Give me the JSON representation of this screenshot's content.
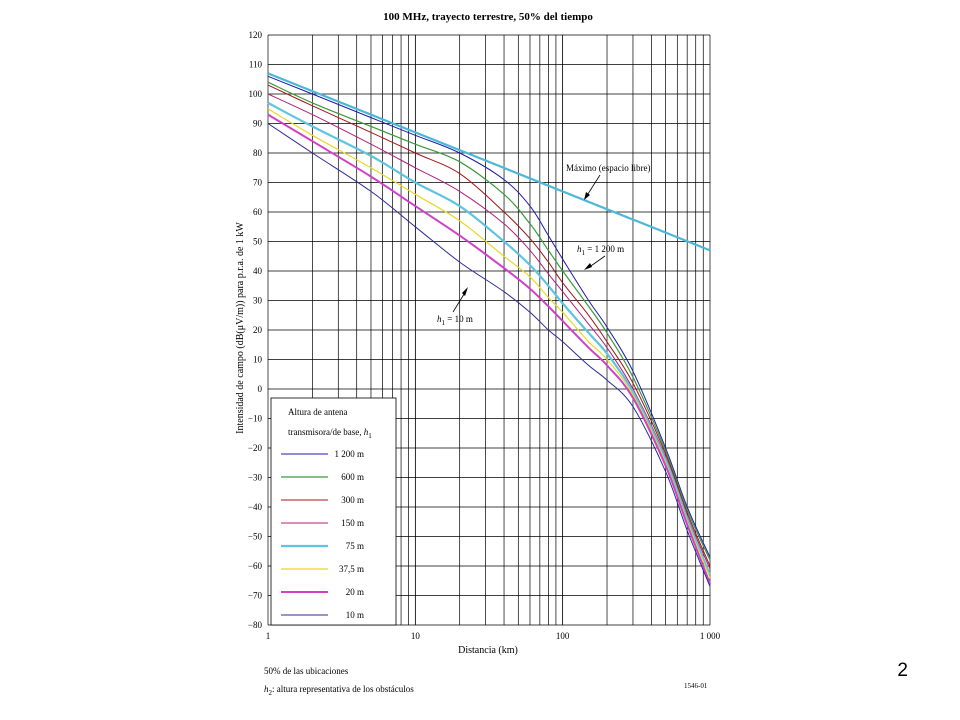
{
  "chart_data": {
    "type": "line",
    "title": "100 MHz, trayecto terrestre, 50% del tiempo",
    "xlabel": "Distancia (km)",
    "ylabel": "Intensidad de campo (dB(μV/m)) para p.r.a. de 1 kW",
    "xscale": "log",
    "xlim": [
      1,
      1000
    ],
    "ylim": [
      -80,
      120
    ],
    "grid": true,
    "xticks": [
      "1",
      "10",
      "100",
      "1 000"
    ],
    "yticks": [
      "120",
      "110",
      "100",
      "90",
      "80",
      "70",
      "60",
      "50",
      "40",
      "30",
      "20",
      "10",
      "0",
      "−10",
      "−20",
      "−30",
      "−40",
      "−50",
      "−60",
      "−70",
      "−80"
    ],
    "legend": {
      "placement": "bottom-left",
      "title_line1": "Altura de antena",
      "title_line2": "transmisora/de base, ",
      "title_var": "h",
      "title_sub": "1",
      "entries": [
        "1 200 m",
        "600 m",
        "300 m",
        "150 m",
        "75 m",
        "37,5 m",
        "20 m",
        "10 m"
      ]
    },
    "annotations": {
      "free_space": "Máximo (espacio libre)",
      "h1_top": "h",
      "h1_top_sub": "1",
      "h1_top_value": " = 1 200 m",
      "h1_bottom": "h",
      "h1_bottom_sub": "1",
      "h1_bottom_value": " = 10 m"
    },
    "series": [
      {
        "name": "Máximo (espacio libre)",
        "color": "#4bb8d8",
        "width": 2.2,
        "x": [
          1,
          1000
        ],
        "y": [
          107,
          47
        ]
      },
      {
        "name": "1 200 m",
        "color": "#1c1cae",
        "width": 1,
        "x": [
          1,
          2,
          5,
          10,
          20,
          40,
          60,
          80,
          100,
          150,
          200,
          300,
          500,
          700,
          1000
        ],
        "y": [
          106,
          100,
          92,
          86,
          80,
          71,
          62,
          52,
          44,
          30,
          21,
          6,
          -20,
          -40,
          -57
        ]
      },
      {
        "name": "600 m",
        "color": "#3a9a3a",
        "width": 1.2,
        "x": [
          1,
          2,
          5,
          10,
          20,
          40,
          60,
          80,
          100,
          150,
          200,
          300,
          500,
          700,
          1000
        ],
        "y": [
          104,
          97,
          89,
          83,
          77,
          66,
          56,
          47,
          40,
          28,
          19,
          4,
          -21,
          -41,
          -58
        ]
      },
      {
        "name": "300 m",
        "color": "#a01818",
        "width": 1,
        "x": [
          1,
          2,
          5,
          10,
          20,
          40,
          60,
          80,
          100,
          150,
          200,
          300,
          500,
          700,
          1000
        ],
        "y": [
          103,
          96,
          87,
          80,
          73,
          60,
          51,
          43,
          36,
          25,
          16,
          2,
          -22,
          -42,
          -60
        ]
      },
      {
        "name": "150 m",
        "color": "#b0207a",
        "width": 1,
        "x": [
          1,
          2,
          5,
          10,
          20,
          40,
          60,
          80,
          100,
          150,
          200,
          300,
          500,
          700,
          1000
        ],
        "y": [
          100,
          93,
          83,
          75,
          67,
          56,
          47,
          39,
          33,
          22,
          14,
          0,
          -23,
          -43,
          -61
        ]
      },
      {
        "name": "75 m",
        "color": "#5ec4e0",
        "width": 2.2,
        "x": [
          1,
          2,
          5,
          10,
          20,
          40,
          60,
          80,
          100,
          150,
          200,
          300,
          500,
          700,
          1000
        ],
        "y": [
          97,
          89,
          79,
          70,
          62,
          50,
          42,
          35,
          29,
          19,
          12,
          -1,
          -24,
          -44,
          -63
        ]
      },
      {
        "name": "37,5 m",
        "color": "#e8d828",
        "width": 1.2,
        "x": [
          1,
          2,
          5,
          10,
          20,
          40,
          60,
          80,
          100,
          150,
          200,
          300,
          500,
          700,
          1000
        ],
        "y": [
          95,
          86,
          75,
          66,
          57,
          45,
          38,
          31,
          26,
          16,
          10,
          -2,
          -25,
          -45,
          -64
        ]
      },
      {
        "name": "20 m",
        "color": "#d040c8",
        "width": 2,
        "x": [
          1,
          2,
          5,
          10,
          20,
          40,
          60,
          80,
          100,
          150,
          200,
          300,
          500,
          700,
          1000
        ],
        "y": [
          93,
          84,
          72,
          62,
          52,
          41,
          34,
          28,
          23,
          14,
          8,
          -3,
          -26,
          -46,
          -66
        ]
      },
      {
        "name": "10 m",
        "color": "#2c2c9a",
        "width": 1,
        "x": [
          1,
          2,
          5,
          10,
          20,
          40,
          60,
          80,
          100,
          150,
          200,
          300,
          500,
          700,
          1000
        ],
        "y": [
          90,
          80,
          67,
          55,
          43,
          33,
          26,
          20,
          16,
          8,
          3,
          -6,
          -28,
          -48,
          -67
        ]
      }
    ]
  },
  "notes": {
    "locations": "50% de las ubicaciones",
    "h2_var": "h",
    "h2_sub": "2",
    "h2_text": ": altura representativa de los obstáculos",
    "code": "1546-01"
  },
  "slide_number": "2"
}
